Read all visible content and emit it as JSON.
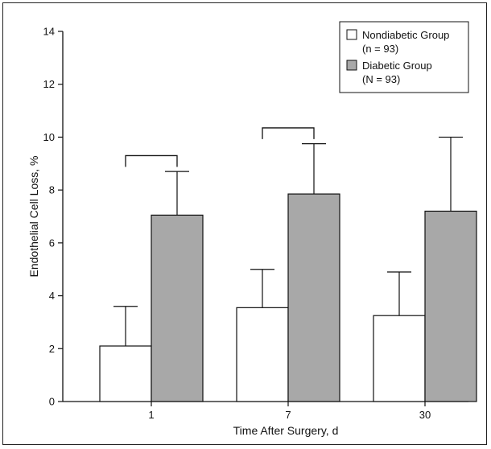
{
  "chart_data": {
    "type": "bar",
    "categories": [
      "1",
      "7",
      "30"
    ],
    "xlabel": "Time After Surgery, d",
    "ylabel": "Endothelial Cell Loss, %",
    "ylim": [
      0,
      14
    ],
    "yticks": [
      0,
      2,
      4,
      6,
      8,
      10,
      12,
      14
    ],
    "legend_position": "top-right",
    "grid": false,
    "series": [
      {
        "name": "Nondiabetic Group",
        "subname": "(n = 93)",
        "color": "#ffffff",
        "values": [
          2.1,
          3.55,
          3.25
        ],
        "error_upper": [
          3.6,
          5.0,
          4.9
        ]
      },
      {
        "name": "Diabetic Group",
        "subname": "(N = 93)",
        "color": "#a8a8a8",
        "values": [
          7.05,
          7.85,
          7.2
        ],
        "error_upper": [
          8.7,
          9.75,
          10.0
        ]
      }
    ],
    "significance_brackets": [
      {
        "category": "1",
        "height": 9.3
      },
      {
        "category": "7",
        "height": 10.35
      }
    ]
  }
}
